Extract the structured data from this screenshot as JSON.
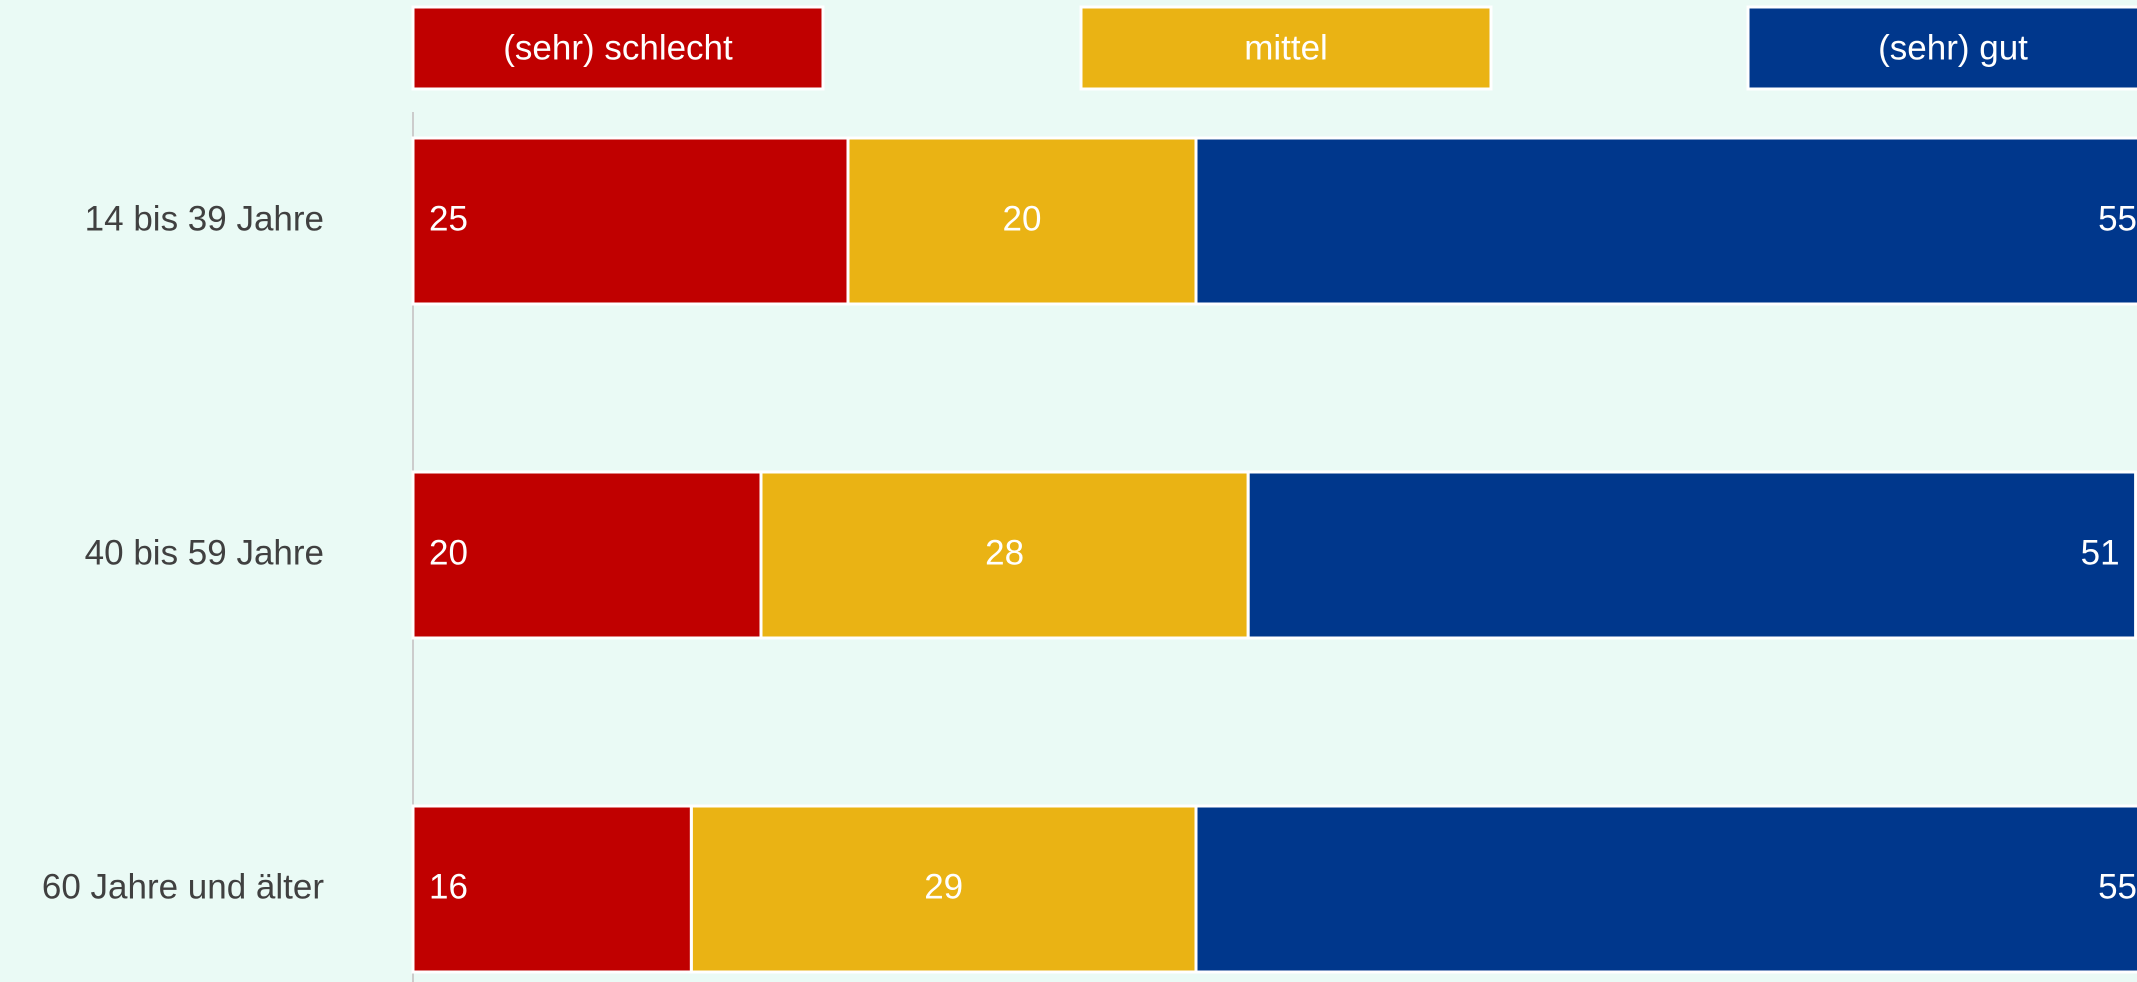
{
  "chart_data": {
    "type": "bar",
    "orientation": "horizontal",
    "stacked": true,
    "title": "",
    "xlabel": "",
    "ylabel": "",
    "xlim": [
      0,
      100
    ],
    "grid": false,
    "legend_position": "top",
    "categories": [
      "14 bis 39 Jahre",
      "40 bis 59 Jahre",
      "60 Jahre und älter"
    ],
    "series": [
      {
        "name": "(sehr) schlecht",
        "color": "#c00000",
        "values": [
          25,
          20,
          16
        ]
      },
      {
        "name": "mittel",
        "color": "#eab314",
        "values": [
          20,
          28,
          29
        ]
      },
      {
        "name": "(sehr) gut",
        "color": "#00378c",
        "values": [
          55,
          51,
          55
        ]
      }
    ]
  }
}
